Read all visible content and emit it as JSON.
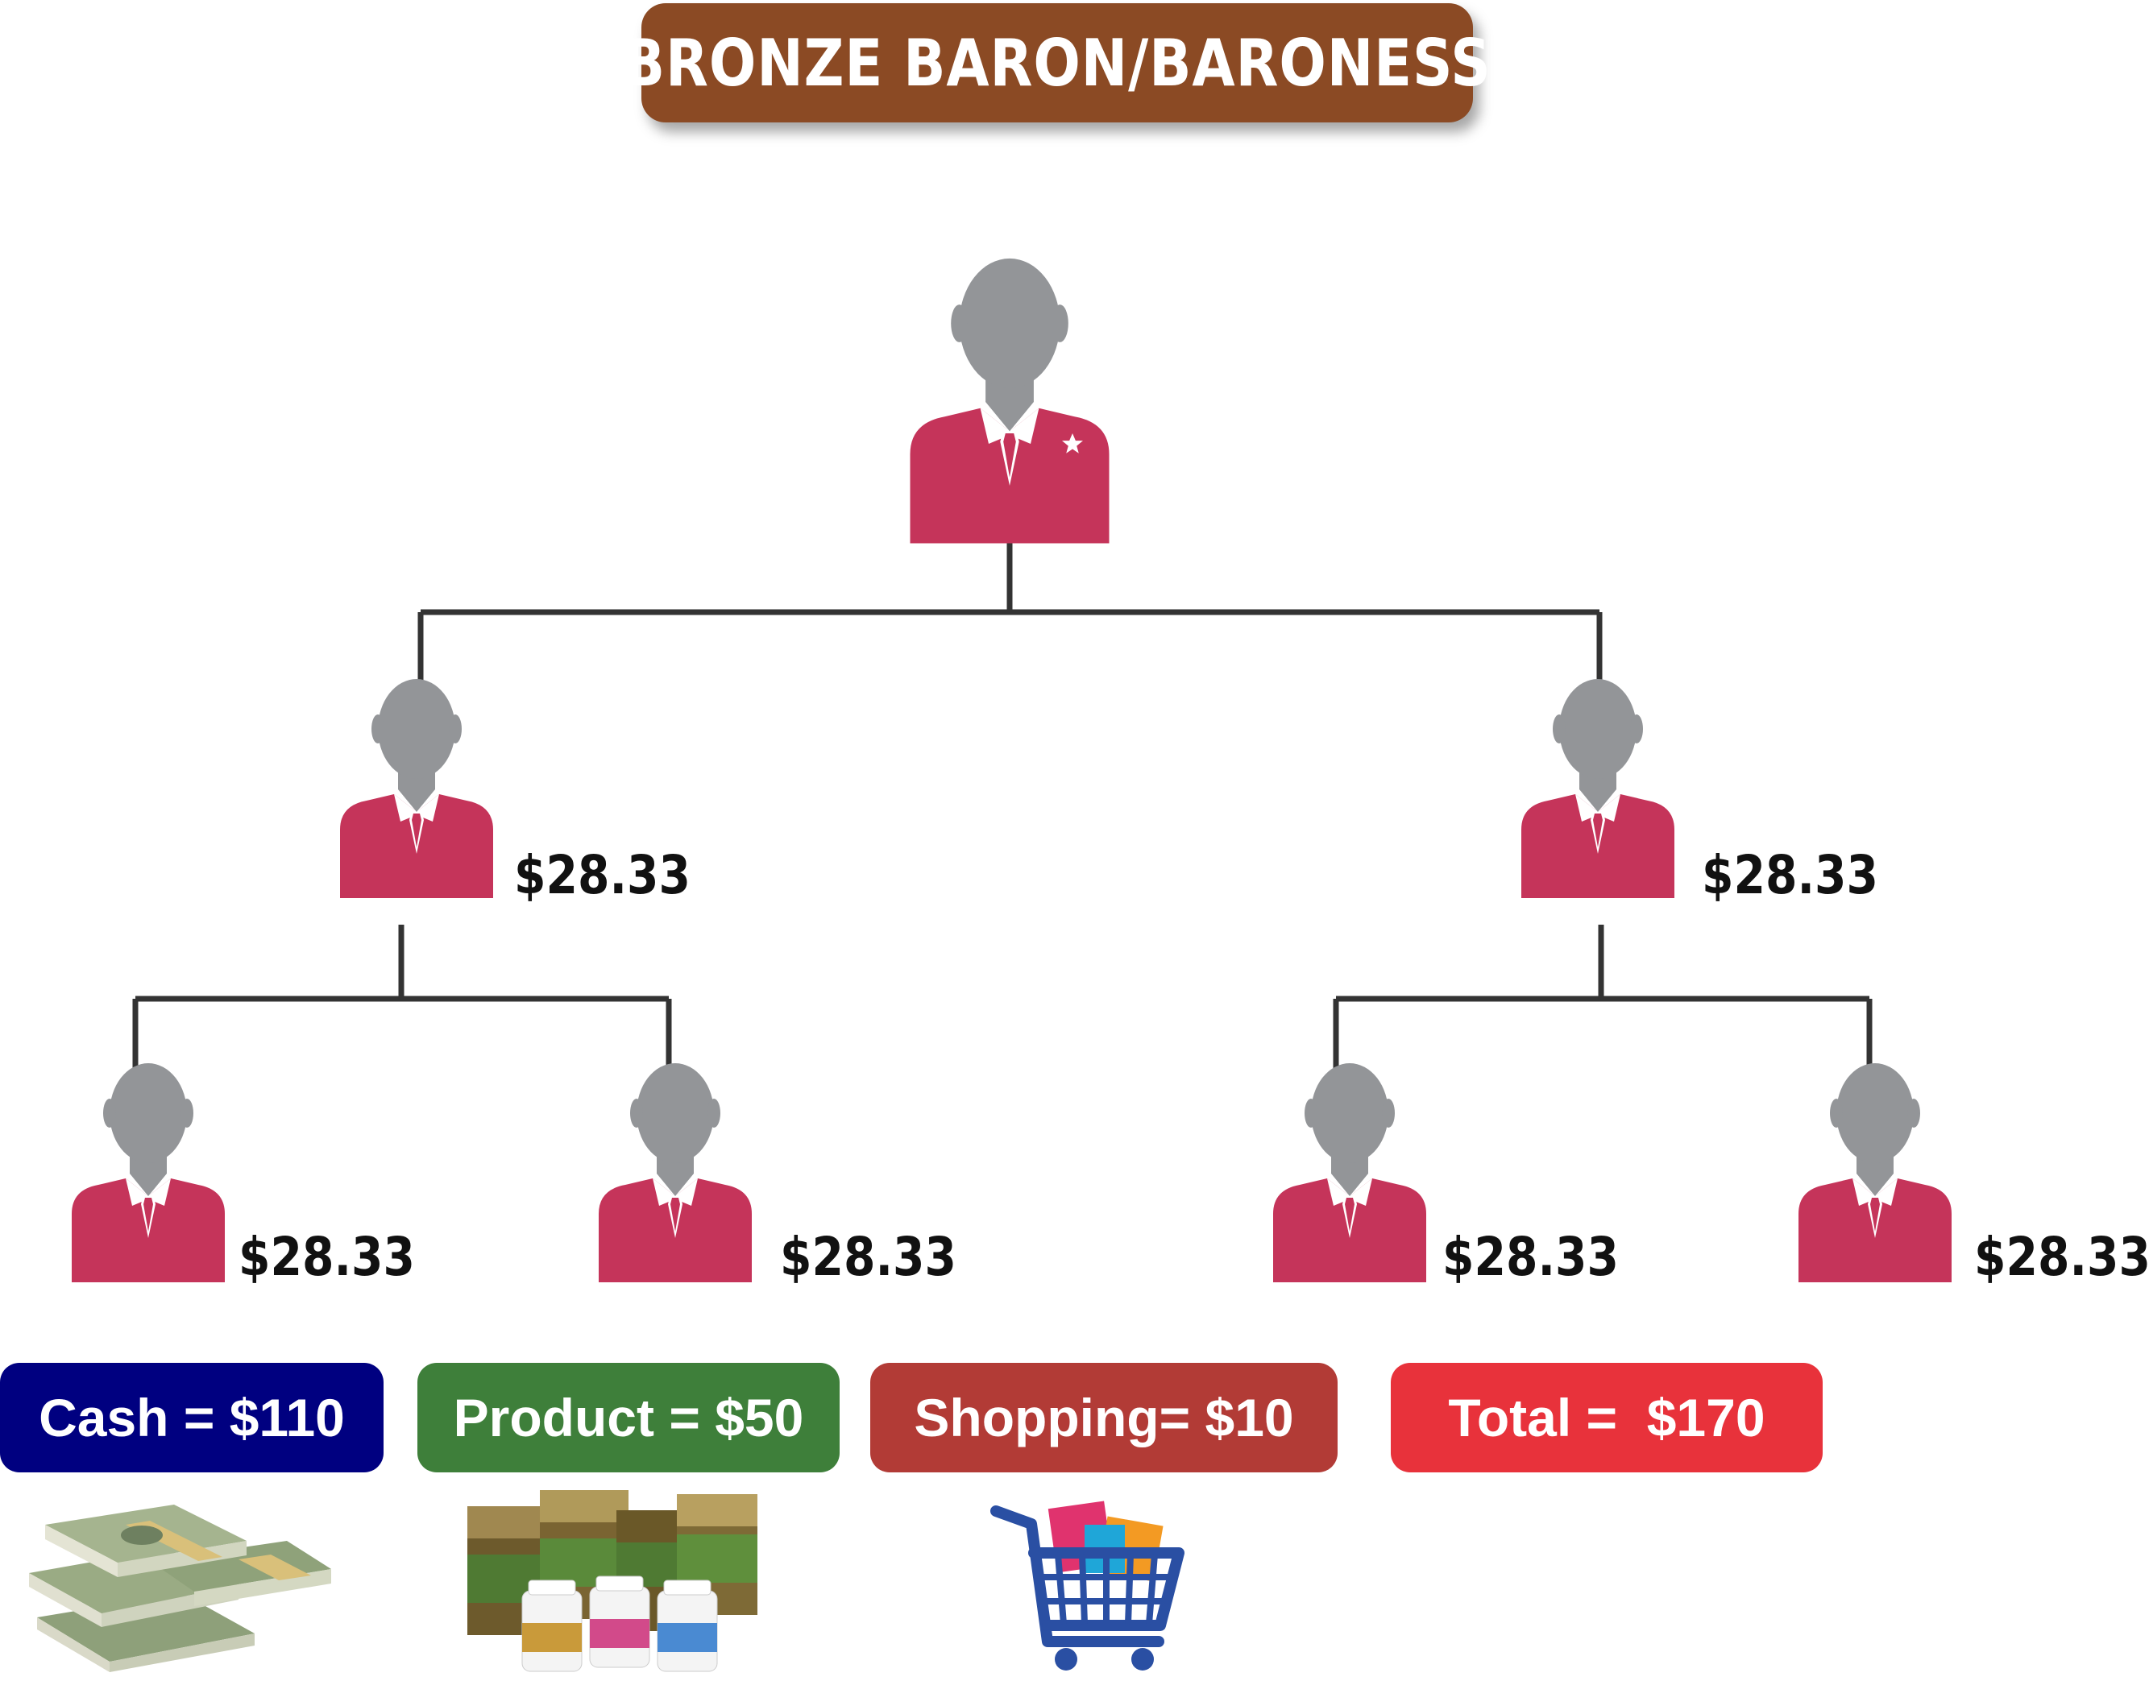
{
  "title": "BRONZE BARON/BARONESS",
  "colors": {
    "title_bg": "#8b4a24",
    "person_head": "#939598",
    "person_suit": "#c5345a",
    "connector": "#333333",
    "cash": "#000080",
    "product": "#3e7f3a",
    "shopping": "#b23b36",
    "total": "#e8323b"
  },
  "tree": {
    "root_icon": "person-with-star-icon",
    "level1": [
      {
        "amount": "$28.33"
      },
      {
        "amount": "$28.33"
      }
    ],
    "level2": [
      {
        "amount": "$28.33"
      },
      {
        "amount": "$28.33"
      },
      {
        "amount": "$28.33"
      },
      {
        "amount": "$28.33"
      }
    ]
  },
  "summary": [
    {
      "label": "Cash = $110",
      "color": "#000080",
      "icon": "money-stack-icon"
    },
    {
      "label": "Product = $50",
      "color": "#3e7f3a",
      "icon": "product-boxes-icon"
    },
    {
      "label": "Shopping= $10",
      "color": "#b23b36",
      "icon": "shopping-cart-icon"
    },
    {
      "label": "Total =  $170",
      "color": "#e8323b"
    }
  ]
}
